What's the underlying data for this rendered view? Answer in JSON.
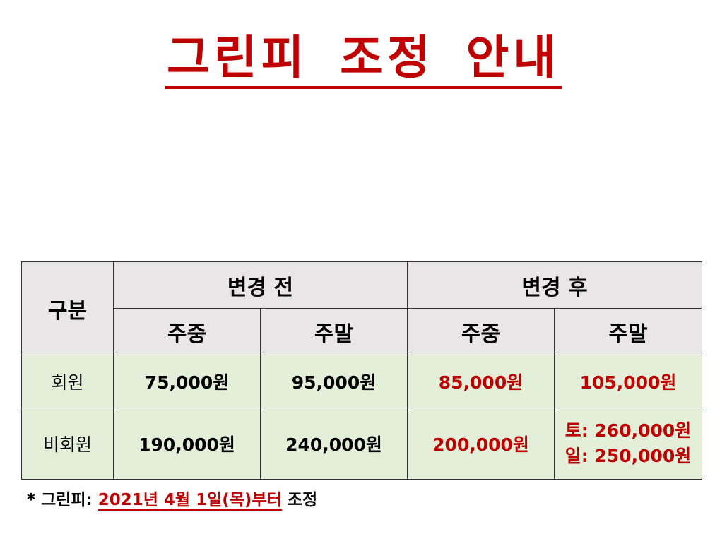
{
  "title": "그린피 조정 안내",
  "table": {
    "category_header": "구분",
    "before_header": "변경 전",
    "after_header": "변경 후",
    "sub_headers": [
      "주중",
      "주말",
      "주중",
      "주말"
    ],
    "rows": [
      {
        "label": "회원",
        "before_weekday": "75,000원",
        "before_weekend": "95,000원",
        "after_weekday": "85,000원",
        "after_weekend": [
          "105,000원"
        ]
      },
      {
        "label": "비회원",
        "before_weekday": "190,000원",
        "before_weekend": "240,000원",
        "after_weekday": "200,000원",
        "after_weekend": [
          "토: 260,000원",
          "일: 250,000원"
        ]
      }
    ]
  },
  "note": {
    "prefix": "*  그린피:",
    "date": "2021년  4월  1일(목)부터",
    "suffix": "조정"
  },
  "colors": {
    "accent": "#c00000",
    "header_bg": "#e8e6e6",
    "body_bg": "#e4efda"
  }
}
